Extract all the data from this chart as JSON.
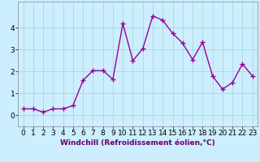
{
  "x": [
    0,
    1,
    2,
    3,
    4,
    5,
    6,
    7,
    8,
    9,
    10,
    11,
    12,
    13,
    14,
    15,
    16,
    17,
    18,
    19,
    20,
    21,
    22,
    23
  ],
  "y": [
    0.3,
    0.3,
    0.15,
    0.3,
    0.3,
    0.45,
    1.6,
    2.05,
    2.05,
    1.65,
    4.2,
    2.5,
    3.05,
    4.55,
    4.35,
    3.75,
    3.3,
    2.55,
    3.35,
    1.8,
    1.2,
    1.5,
    2.35,
    1.8
  ],
  "line_color": "#990099",
  "marker": "+",
  "bg_color": "#cceeff",
  "grid_color": "#aadddd",
  "xlabel": "Windchill (Refroidissement éolien,°C)",
  "ylim": [
    -0.5,
    5.2
  ],
  "xlim": [
    -0.5,
    23.5
  ],
  "xticks": [
    0,
    1,
    2,
    3,
    4,
    5,
    6,
    7,
    8,
    9,
    10,
    11,
    12,
    13,
    14,
    15,
    16,
    17,
    18,
    19,
    20,
    21,
    22,
    23
  ],
  "yticks": [
    0,
    1,
    2,
    3,
    4
  ],
  "xlabel_fontsize": 6.5,
  "tick_fontsize": 6.5,
  "line_width": 1.0,
  "marker_size": 4,
  "marker_ew": 1.0
}
